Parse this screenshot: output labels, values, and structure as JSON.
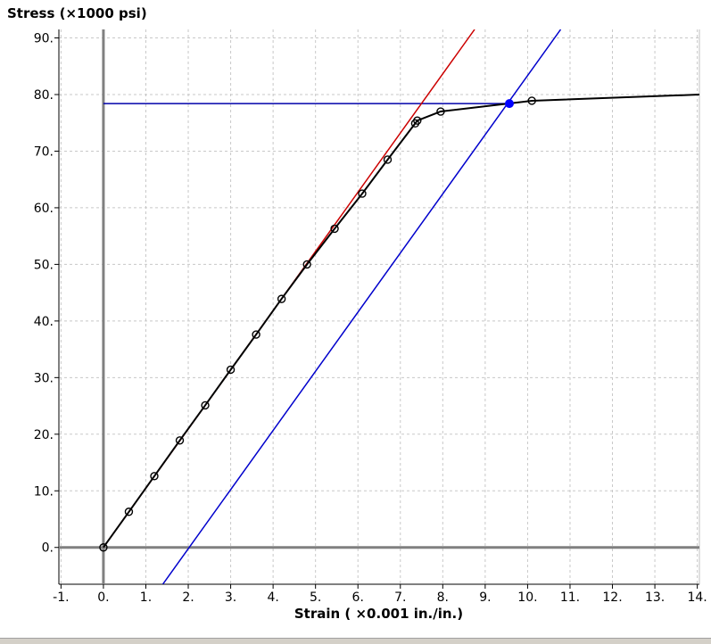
{
  "chart_data": {
    "type": "scatter",
    "title": "",
    "ylabel": "Stress (×1000 psi)",
    "xlabel": "Strain ( ×0.001 in./in.)",
    "xlim": [
      -1.05,
      14.05
    ],
    "ylim": [
      -6.5,
      91.5
    ],
    "xticks": [
      "-1.",
      "0.",
      "1.",
      "2.",
      "3.",
      "4.",
      "5.",
      "6.",
      "7.",
      "8.",
      "9.",
      "10.",
      "11.",
      "12.",
      "13.",
      "14."
    ],
    "xtick_values": [
      -1,
      0,
      1,
      2,
      3,
      4,
      5,
      6,
      7,
      8,
      9,
      10,
      11,
      12,
      13,
      14
    ],
    "yticks": [
      "0.",
      "10.",
      "20.",
      "30.",
      "40.",
      "50.",
      "60.",
      "70.",
      "80.",
      "90."
    ],
    "ytick_values": [
      0,
      10,
      20,
      30,
      40,
      50,
      60,
      70,
      80,
      90
    ],
    "grid": true,
    "series": [
      {
        "type": "line-markers",
        "color": "#000000",
        "marker": "open-circle",
        "x": [
          0.0,
          0.6,
          1.2,
          1.8,
          2.4,
          3.0,
          3.6,
          4.2,
          4.8,
          5.45,
          6.1,
          6.7,
          7.35,
          7.4,
          7.95,
          10.1,
          14.05
        ],
        "y": [
          0.0,
          6.3,
          12.6,
          18.9,
          25.1,
          31.4,
          37.6,
          43.9,
          50.0,
          56.3,
          62.5,
          68.5,
          74.9,
          75.4,
          77.0,
          78.9,
          80.0
        ],
        "marker_count": 16
      },
      {
        "type": "line",
        "color": "#cc0000",
        "x": [
          0.0,
          8.75
        ],
        "y": [
          0.0,
          91.5
        ]
      },
      {
        "type": "line",
        "color": "#0000cc",
        "x": [
          1.4,
          10.78
        ],
        "y": [
          -6.5,
          91.5
        ]
      },
      {
        "type": "line",
        "color": "#0000aa",
        "x": [
          0.0,
          9.57
        ],
        "y": [
          78.4,
          78.4
        ]
      }
    ],
    "highlight_point": {
      "x": 9.57,
      "y": 78.4,
      "color": "#0000ff"
    },
    "axis_color": "#808080",
    "grid_color": "#c8c8c8"
  }
}
